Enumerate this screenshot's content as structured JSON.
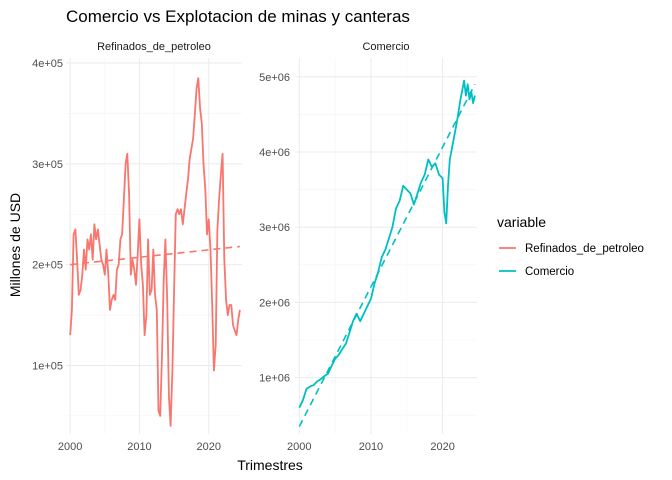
{
  "chart_data": {
    "type": "line",
    "title": "Comercio vs Explotacion de minas y canteras",
    "xlabel": "Trimestres",
    "ylabel": "Millones de USD",
    "grid": true,
    "legend": {
      "title": "variable",
      "position": "right",
      "entries": [
        {
          "label": "Refinados_de_petroleo",
          "color": "#F8766D"
        },
        {
          "label": "Comercio",
          "color": "#00BFC4"
        }
      ]
    },
    "panels": [
      {
        "strip": "Refinados_de_petroleo",
        "color": "#F8766D",
        "xlim": [
          1999.4,
          2024.8
        ],
        "ylim": [
          32000,
          405000
        ],
        "x_ticks": [
          2000,
          2010,
          2020
        ],
        "x_tick_labels": [
          "2000",
          "2010",
          "2020"
        ],
        "y_ticks": [
          100000,
          200000,
          300000,
          400000
        ],
        "y_tick_labels": [
          "1e+05",
          "2e+05",
          "3e+05",
          "4e+05"
        ],
        "series": {
          "x": [
            2000.0,
            2000.25,
            2000.5,
            2000.75,
            2001.0,
            2001.25,
            2001.5,
            2001.75,
            2002.0,
            2002.25,
            2002.5,
            2002.75,
            2003.0,
            2003.25,
            2003.5,
            2003.75,
            2004.0,
            2004.25,
            2004.5,
            2004.75,
            2005.0,
            2005.25,
            2005.5,
            2005.75,
            2006.0,
            2006.25,
            2006.5,
            2006.75,
            2007.0,
            2007.25,
            2007.5,
            2007.75,
            2008.0,
            2008.25,
            2008.5,
            2008.75,
            2009.0,
            2009.25,
            2009.5,
            2009.75,
            2010.0,
            2010.25,
            2010.5,
            2010.75,
            2011.0,
            2011.25,
            2011.5,
            2011.75,
            2012.0,
            2012.25,
            2012.5,
            2012.75,
            2013.0,
            2013.25,
            2013.5,
            2013.75,
            2014.0,
            2014.25,
            2014.5,
            2014.75,
            2015.0,
            2015.25,
            2015.5,
            2015.75,
            2016.0,
            2016.25,
            2016.5,
            2016.75,
            2017.0,
            2017.25,
            2017.5,
            2017.75,
            2018.0,
            2018.25,
            2018.5,
            2018.75,
            2019.0,
            2019.25,
            2019.5,
            2019.75,
            2020.0,
            2020.25,
            2020.5,
            2020.75,
            2021.0,
            2021.25,
            2021.5,
            2021.75,
            2022.0,
            2022.25,
            2022.5,
            2022.75,
            2023.0,
            2023.25,
            2023.5,
            2023.75,
            2024.0,
            2024.25,
            2024.5
          ],
          "values": [
            130000,
            155000,
            230000,
            235000,
            205000,
            170000,
            175000,
            190000,
            215000,
            195000,
            225000,
            215000,
            230000,
            205000,
            240000,
            225000,
            235000,
            220000,
            205000,
            200000,
            190000,
            215000,
            190000,
            155000,
            165000,
            170000,
            165000,
            195000,
            200000,
            225000,
            230000,
            265000,
            300000,
            310000,
            270000,
            190000,
            205000,
            195000,
            180000,
            210000,
            245000,
            200000,
            180000,
            130000,
            150000,
            225000,
            170000,
            175000,
            215000,
            170000,
            155000,
            55000,
            50000,
            110000,
            185000,
            225000,
            165000,
            70000,
            40000,
            95000,
            175000,
            250000,
            255000,
            250000,
            255000,
            240000,
            255000,
            270000,
            285000,
            305000,
            315000,
            325000,
            350000,
            375000,
            385000,
            355000,
            340000,
            300000,
            275000,
            230000,
            245000,
            215000,
            160000,
            95000,
            120000,
            235000,
            265000,
            290000,
            310000,
            205000,
            165000,
            150000,
            160000,
            160000,
            140000,
            135000,
            130000,
            145000,
            155000
          ]
        },
        "trend": {
          "x": [
            2000.0,
            2024.5
          ],
          "values": [
            200000,
            218000
          ]
        }
      },
      {
        "strip": "Comercio",
        "color": "#00BFC4",
        "xlim": [
          1999.4,
          2024.8
        ],
        "ylim": [
          250000,
          5250000
        ],
        "x_ticks": [
          2000,
          2010,
          2020
        ],
        "x_tick_labels": [
          "2000",
          "2010",
          "2020"
        ],
        "y_ticks": [
          1000000,
          2000000,
          3000000,
          4000000,
          5000000
        ],
        "y_tick_labels": [
          "1e+06",
          "2e+06",
          "3e+06",
          "4e+06",
          "5e+06"
        ],
        "series": {
          "x": [
            2000.0,
            2000.5,
            2001.0,
            2001.5,
            2002.0,
            2002.5,
            2003.0,
            2003.5,
            2004.0,
            2004.5,
            2005.0,
            2005.5,
            2006.0,
            2006.5,
            2007.0,
            2007.5,
            2008.0,
            2008.5,
            2009.0,
            2009.5,
            2010.0,
            2010.5,
            2011.0,
            2011.5,
            2012.0,
            2012.5,
            2013.0,
            2013.5,
            2014.0,
            2014.5,
            2015.0,
            2015.5,
            2016.0,
            2016.5,
            2017.0,
            2017.5,
            2018.0,
            2018.5,
            2019.0,
            2019.5,
            2020.0,
            2020.25,
            2020.5,
            2020.75,
            2021.0,
            2021.5,
            2022.0,
            2022.5,
            2023.0,
            2023.25,
            2023.5,
            2023.75,
            2024.0,
            2024.25,
            2024.5
          ],
          "values": [
            600000,
            700000,
            850000,
            880000,
            900000,
            950000,
            980000,
            1020000,
            1050000,
            1150000,
            1250000,
            1300000,
            1380000,
            1450000,
            1600000,
            1750000,
            1850000,
            1750000,
            1850000,
            1950000,
            2050000,
            2250000,
            2400000,
            2600000,
            2700000,
            2850000,
            3000000,
            3250000,
            3350000,
            3550000,
            3500000,
            3450000,
            3300000,
            3450000,
            3600000,
            3700000,
            3900000,
            3800000,
            3850000,
            3700000,
            3650000,
            3200000,
            3050000,
            3550000,
            3900000,
            4150000,
            4400000,
            4700000,
            4950000,
            4750000,
            4900000,
            4700000,
            4800000,
            4650000,
            4750000
          ]
        },
        "trend": {
          "x": [
            2000.0,
            2024.5
          ],
          "values": [
            350000,
            4900000
          ]
        }
      }
    ]
  }
}
